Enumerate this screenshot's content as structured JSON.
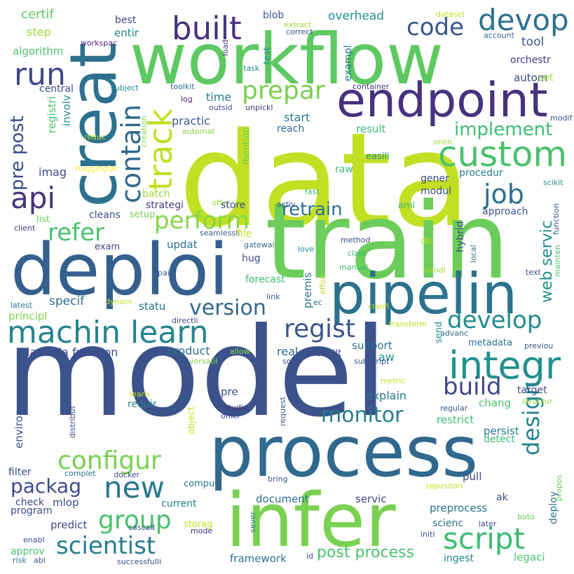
{
  "words": [
    {
      "text": "model",
      "color": "#3b528b"
    },
    {
      "text": "data",
      "color": "#c2df23"
    },
    {
      "text": "train",
      "color": "#6ccd5a"
    },
    {
      "text": "creat",
      "color": "#2c728e"
    },
    {
      "text": "workflow",
      "color": "#5ec962"
    },
    {
      "text": "deploi",
      "color": "#355f8d"
    },
    {
      "text": "process",
      "color": "#31688e"
    },
    {
      "text": "infer",
      "color": "#7ad151"
    },
    {
      "text": "endpoint",
      "color": "#46337e"
    },
    {
      "text": "pipelin",
      "color": "#2c728e"
    },
    {
      "text": "machin learn",
      "color": "#25848e"
    },
    {
      "text": "integr",
      "color": "#21918c"
    },
    {
      "text": "custom",
      "color": "#4ac16d"
    },
    {
      "text": "devop",
      "color": "#2c728e"
    },
    {
      "text": "built",
      "color": "#46337e"
    },
    {
      "text": "code",
      "color": "#39568c"
    },
    {
      "text": "run",
      "color": "#3e4a89"
    },
    {
      "text": "prepar",
      "color": "#7ad151"
    },
    {
      "text": "api",
      "color": "#46337e"
    },
    {
      "text": "contain",
      "color": "#31688e"
    },
    {
      "text": "track",
      "color": "#c2df23"
    },
    {
      "text": "pre post",
      "color": "#3e4a89"
    },
    {
      "text": "refer",
      "color": "#4ac16d"
    },
    {
      "text": "perform",
      "color": "#86d549"
    },
    {
      "text": "implement",
      "color": "#3dbc74"
    },
    {
      "text": "job",
      "color": "#2c728e"
    },
    {
      "text": "retrain",
      "color": "#2c728e"
    },
    {
      "text": "version",
      "color": "#31688e"
    },
    {
      "text": "regist",
      "color": "#39568c"
    },
    {
      "text": "develop",
      "color": "#228c8d"
    },
    {
      "text": "web servic",
      "color": "#218f8d"
    },
    {
      "text": "build",
      "color": "#3e4a89"
    },
    {
      "text": "design",
      "color": "#25848e"
    },
    {
      "text": "monitor",
      "color": "#287d8e"
    },
    {
      "text": "configur",
      "color": "#7ad151"
    },
    {
      "text": "packag",
      "color": "#3e4a89"
    },
    {
      "text": "new",
      "color": "#2a788e"
    },
    {
      "text": "group",
      "color": "#4ac16d"
    },
    {
      "text": "scientist",
      "color": "#287d8e"
    },
    {
      "text": "script",
      "color": "#3dbc74"
    },
    {
      "text": "post process",
      "color": "#4ac16d"
    },
    {
      "text": "certif",
      "color": "#5ec962"
    },
    {
      "text": "best",
      "color": "#3e4a89"
    },
    {
      "text": "blob",
      "color": "#39568c"
    },
    {
      "text": "extract",
      "color": "#a0da39"
    },
    {
      "text": "correct",
      "color": "#39568c"
    },
    {
      "text": "overhead",
      "color": "#218f8d"
    },
    {
      "text": "dataset",
      "color": "#c2df23"
    },
    {
      "text": "account",
      "color": "#31688e"
    },
    {
      "text": "step",
      "color": "#a0da39"
    },
    {
      "text": "entir",
      "color": "#25848e"
    },
    {
      "text": "algorithm",
      "color": "#4ac16d"
    },
    {
      "text": "workspac",
      "color": "#482475"
    },
    {
      "text": "load",
      "color": "#46337e"
    },
    {
      "text": "tool",
      "color": "#39568c"
    },
    {
      "text": "orchestr",
      "color": "#443983"
    },
    {
      "text": "test",
      "color": "#21918c"
    },
    {
      "text": "exampl",
      "color": "#287d8e"
    },
    {
      "text": "task",
      "color": "#228c8d"
    },
    {
      "text": "autom",
      "color": "#3e4a89"
    },
    {
      "text": "set",
      "color": "#a0da39"
    },
    {
      "text": "central",
      "color": "#3e4a89"
    },
    {
      "text": "subject",
      "color": "#228c8d"
    },
    {
      "text": "toolkit",
      "color": "#31688e"
    },
    {
      "text": "container",
      "color": "#443983"
    },
    {
      "text": "log",
      "color": "#482475"
    },
    {
      "text": "time",
      "color": "#2a788e"
    },
    {
      "text": "outsid",
      "color": "#3e4a89"
    },
    {
      "text": "unpickl",
      "color": "#46337e"
    },
    {
      "text": "registri",
      "color": "#4ac16d"
    },
    {
      "text": "involv",
      "color": "#218f8d"
    },
    {
      "text": "practic",
      "color": "#39568c"
    },
    {
      "text": "start",
      "color": "#2a788e"
    },
    {
      "text": "reach",
      "color": "#31688e"
    },
    {
      "text": "result",
      "color": "#3dbc74"
    },
    {
      "text": "mention",
      "color": "#6ccd5a"
    },
    {
      "text": "onlin",
      "color": "#a0da39"
    },
    {
      "text": "modif",
      "color": "#39568c"
    },
    {
      "text": "imag",
      "color": "#3e4a89"
    },
    {
      "text": "reduc",
      "color": "#b5de2b"
    },
    {
      "text": "automat",
      "color": "#86d549"
    },
    {
      "text": "creation",
      "color": "#86d549"
    },
    {
      "text": "easili",
      "color": "#21918c"
    },
    {
      "text": "huggingfac",
      "color": "#fde725"
    },
    {
      "text": "raw",
      "color": "#3dbc74"
    },
    {
      "text": "procedur",
      "color": "#287d8e"
    },
    {
      "text": "gener",
      "color": "#3e4a89"
    },
    {
      "text": "modul",
      "color": "#3e4a89"
    },
    {
      "text": "scikit",
      "color": "#21918c"
    },
    {
      "text": "batch",
      "color": "#a0da39"
    },
    {
      "text": "strategi",
      "color": "#443983"
    },
    {
      "text": "setup",
      "color": "#7ad151"
    },
    {
      "text": "offer",
      "color": "#a0da39"
    },
    {
      "text": "fast",
      "color": "#3dbc74"
    },
    {
      "text": "aml",
      "color": "#3dbc74"
    },
    {
      "text": "activ",
      "color": "#39568c"
    },
    {
      "text": "hybrid",
      "color": "#3e4a89"
    },
    {
      "text": "approach",
      "color": "#39568c"
    },
    {
      "text": "function",
      "color": "#39568c"
    },
    {
      "text": "cleans",
      "color": "#3e4a89"
    },
    {
      "text": "list",
      "color": "#6ccd5a"
    },
    {
      "text": "store",
      "color": "#3e4a89"
    },
    {
      "text": "client",
      "color": "#46337e"
    },
    {
      "text": "seamlessli",
      "color": "#355f8d"
    },
    {
      "text": "exam",
      "color": "#414487"
    },
    {
      "text": "file",
      "color": "#c2df23"
    },
    {
      "text": "gatewai",
      "color": "#31688e"
    },
    {
      "text": "method",
      "color": "#3e4a89"
    },
    {
      "text": "class",
      "color": "#3dbc74"
    },
    {
      "text": "love",
      "color": "#228c8d"
    },
    {
      "text": "dlc",
      "color": "#c2df23"
    },
    {
      "text": "local",
      "color": "#2c728e"
    },
    {
      "text": "updat",
      "color": "#2c728e"
    },
    {
      "text": "pai",
      "color": "#39568c"
    },
    {
      "text": "hug",
      "color": "#3e4a89"
    },
    {
      "text": "manual",
      "color": "#3dbc74"
    },
    {
      "text": "handl",
      "color": "#a0da39"
    },
    {
      "text": "text",
      "color": "#3e4a89"
    },
    {
      "text": "mainten",
      "color": "#4ac16d"
    },
    {
      "text": "forecast",
      "color": "#3dbc74"
    },
    {
      "text": "premis",
      "color": "#2c728e"
    },
    {
      "text": "effort",
      "color": "#b5de2b"
    },
    {
      "text": "link",
      "color": "#39568c"
    },
    {
      "text": "specif",
      "color": "#2c728e"
    },
    {
      "text": "dynam",
      "color": "#c2df23"
    },
    {
      "text": "latest",
      "color": "#2c728e"
    },
    {
      "text": "ec",
      "color": "#2c728e"
    },
    {
      "text": "clarifi",
      "color": "#c2df23"
    },
    {
      "text": "statu",
      "color": "#2c728e"
    },
    {
      "text": "directli",
      "color": "#3e4a89"
    },
    {
      "text": "transform",
      "color": "#c2df23"
    },
    {
      "text": "principl",
      "color": "#86d549"
    },
    {
      "text": "advanc",
      "color": "#31688e"
    },
    {
      "text": "metadata",
      "color": "#2c728e"
    },
    {
      "text": "previou",
      "color": "#39568c"
    },
    {
      "text": "send",
      "color": "#21918c"
    },
    {
      "text": "lambda function",
      "color": "#3e4a89"
    },
    {
      "text": "product",
      "color": "#2c728e"
    },
    {
      "text": "real",
      "color": "#31688e"
    },
    {
      "text": "prebuilt",
      "color": "#3e4a89"
    },
    {
      "text": "support",
      "color": "#2c728e"
    },
    {
      "text": "aw",
      "color": "#21918c"
    },
    {
      "text": "allow",
      "color": "#86d549"
    },
    {
      "text": "versatil",
      "color": "#86d549"
    },
    {
      "text": "sort",
      "color": "#3e4a89"
    },
    {
      "text": "subscript",
      "color": "#39568c"
    },
    {
      "text": "metric",
      "color": "#c2df23"
    },
    {
      "text": "target",
      "color": "#3e4a89"
    },
    {
      "text": "environ",
      "color": "#39568c"
    },
    {
      "text": "distribut",
      "color": "#3e4a89"
    },
    {
      "text": "learn",
      "color": "#c2df23"
    },
    {
      "text": "requir",
      "color": "#25848e"
    },
    {
      "text": "object",
      "color": "#c2df23"
    },
    {
      "text": "pre",
      "color": "#3e4a89"
    },
    {
      "text": "studio",
      "color": "#46337e"
    },
    {
      "text": "offici",
      "color": "#3e4a89"
    },
    {
      "text": "request",
      "color": "#39568c"
    },
    {
      "text": "explain",
      "color": "#2a788e"
    },
    {
      "text": "chang",
      "color": "#4ac16d"
    },
    {
      "text": "regular",
      "color": "#39568c"
    },
    {
      "text": "structur",
      "color": "#a0da39"
    },
    {
      "text": "restrict",
      "color": "#3dbc74"
    },
    {
      "text": "persist",
      "color": "#2a788e"
    },
    {
      "text": "detect",
      "color": "#3dbc74"
    },
    {
      "text": "propos",
      "color": "#6ccd5a"
    },
    {
      "text": "filter",
      "color": "#3e4a89"
    },
    {
      "text": "complet",
      "color": "#2c728e"
    },
    {
      "text": "docker",
      "color": "#3e4a89"
    },
    {
      "text": "comput",
      "color": "#2a788e"
    },
    {
      "text": "bring",
      "color": "#39568c"
    },
    {
      "text": "repositori",
      "color": "#c2df23"
    },
    {
      "text": "pull",
      "color": "#3e4a89"
    },
    {
      "text": "ak",
      "color": "#3e4a89"
    },
    {
      "text": "check",
      "color": "#3e4a89"
    },
    {
      "text": "mlop",
      "color": "#3e4a89"
    },
    {
      "text": "current",
      "color": "#287d8e"
    },
    {
      "text": "document",
      "color": "#2c728e"
    },
    {
      "text": "servic",
      "color": "#3e4a89"
    },
    {
      "text": "preprocess",
      "color": "#2c728e"
    },
    {
      "text": "deploy",
      "color": "#2c728e"
    },
    {
      "text": "program",
      "color": "#3e4a89"
    },
    {
      "text": "predict",
      "color": "#3e4a89"
    },
    {
      "text": "cascad",
      "color": "#39568c"
    },
    {
      "text": "storag",
      "color": "#c2df23"
    },
    {
      "text": "mode",
      "color": "#46337e"
    },
    {
      "text": "sever",
      "color": "#2c728e"
    },
    {
      "text": "scienc",
      "color": "#2c728e"
    },
    {
      "text": "later",
      "color": "#3e4a89"
    },
    {
      "text": "boto",
      "color": "#6ccd5a"
    },
    {
      "text": "initi",
      "color": "#39568c"
    },
    {
      "text": "enabl",
      "color": "#3e4a89"
    },
    {
      "text": "approv",
      "color": "#4ac16d"
    },
    {
      "text": "framework",
      "color": "#2c728e"
    },
    {
      "text": "id",
      "color": "#3e4a89"
    },
    {
      "text": "ingest",
      "color": "#25848e"
    },
    {
      "text": "legaci",
      "color": "#4ac16d"
    },
    {
      "text": "risk",
      "color": "#2c728e"
    },
    {
      "text": "abl",
      "color": "#3e4a89"
    },
    {
      "text": "successfulli",
      "color": "#3e4a89"
    }
  ]
}
